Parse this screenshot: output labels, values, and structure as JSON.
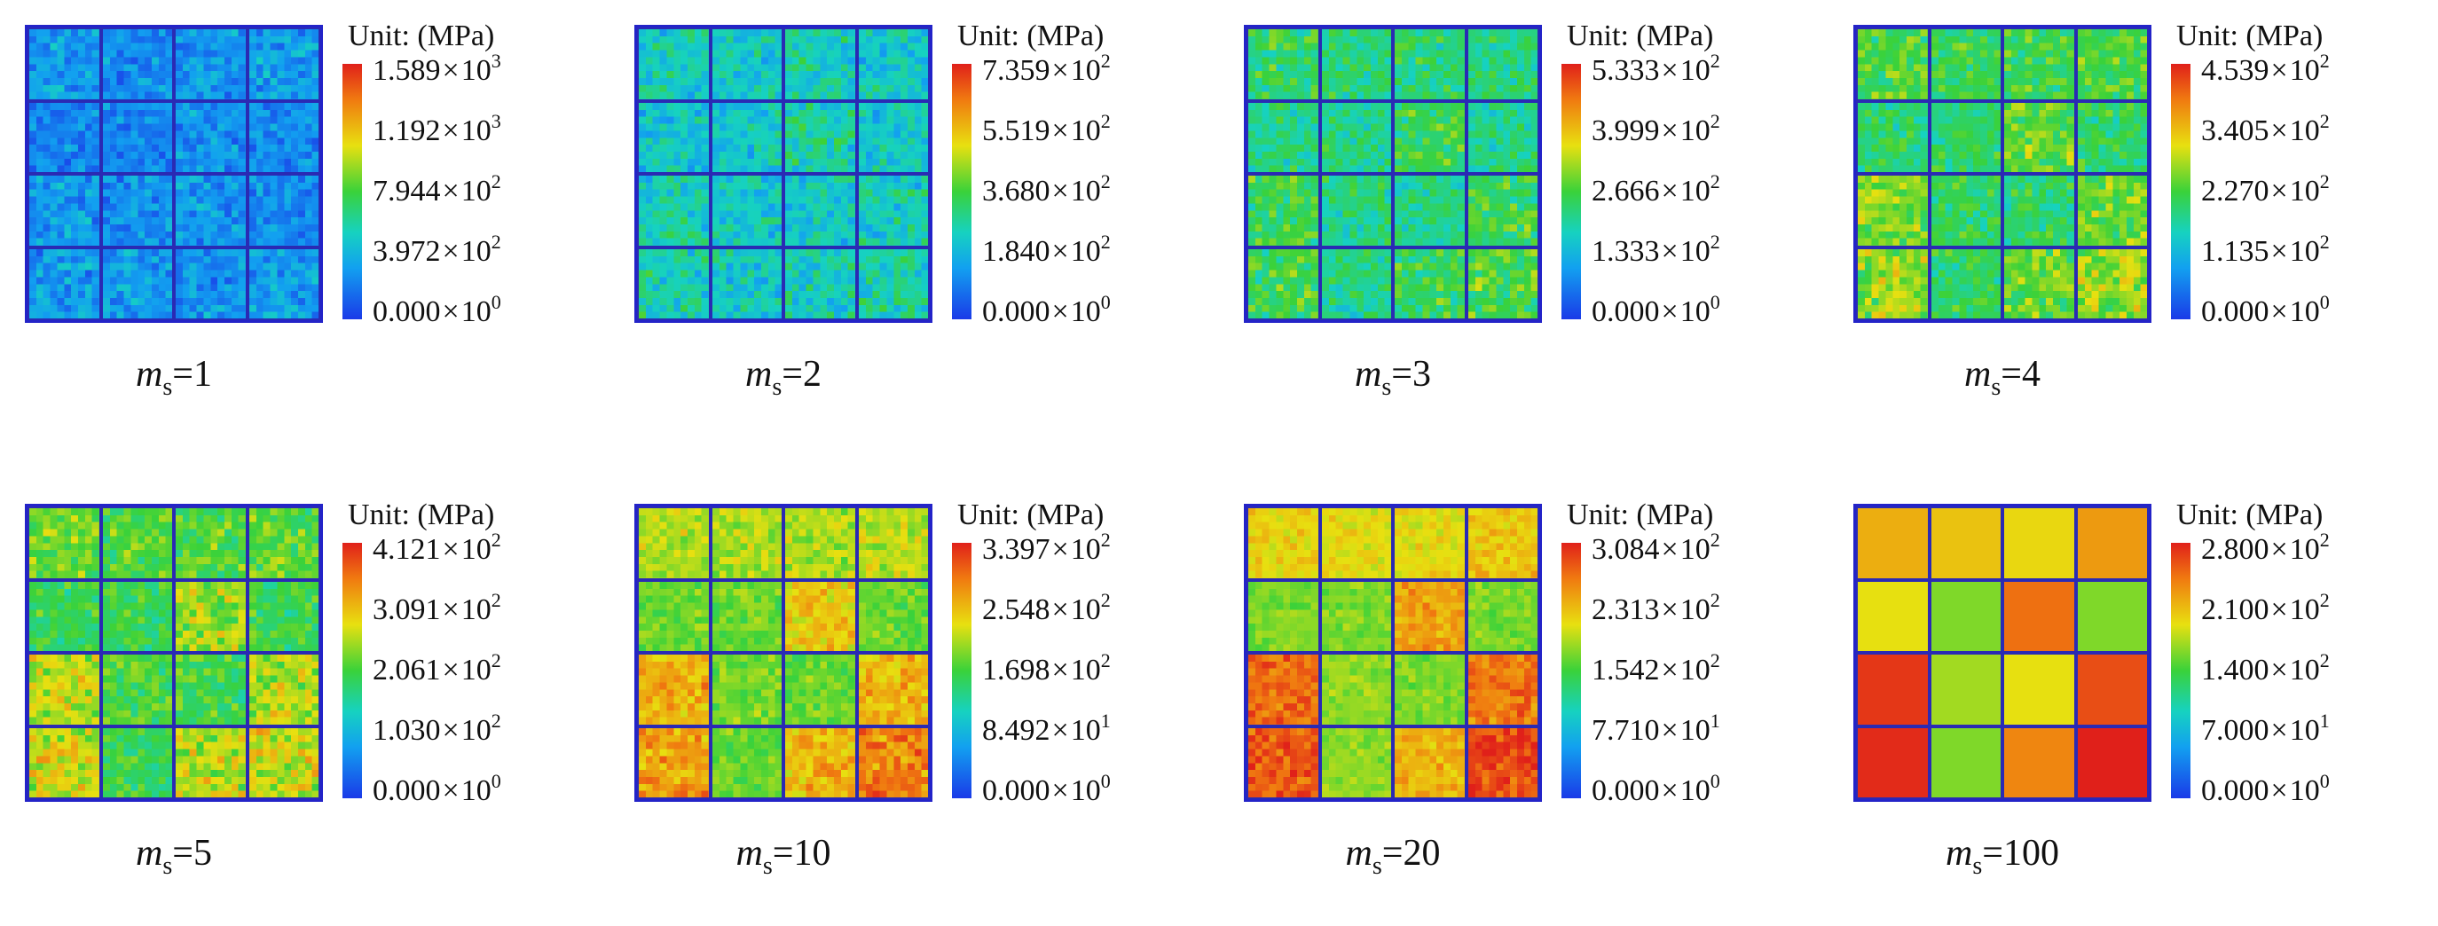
{
  "chart_data": [
    {
      "type": "heatmap",
      "caption": {
        "symbol": "m",
        "subscript": "s",
        "value": "=1"
      },
      "unit_label": "Unit: (MPa)",
      "colorbar_ticks": [
        {
          "mantissa": "1.589",
          "base": "10",
          "exponent": "3"
        },
        {
          "mantissa": "1.192",
          "base": "10",
          "exponent": "3"
        },
        {
          "mantissa": "7.944",
          "base": "10",
          "exponent": "2"
        },
        {
          "mantissa": "3.972",
          "base": "10",
          "exponent": "2"
        },
        {
          "mantissa": "0.000",
          "base": "10",
          "exponent": "0"
        }
      ],
      "vmin": 0,
      "vmax": 1589,
      "block_grid": [
        [
          300,
          260,
          280,
          320
        ],
        [
          240,
          250,
          290,
          260
        ],
        [
          310,
          270,
          300,
          250
        ],
        [
          330,
          300,
          290,
          310
        ]
      ],
      "noise": 0.55
    },
    {
      "type": "heatmap",
      "caption": {
        "symbol": "m",
        "subscript": "s",
        "value": "=2"
      },
      "unit_label": "Unit: (MPa)",
      "colorbar_ticks": [
        {
          "mantissa": "7.359",
          "base": "10",
          "exponent": "2"
        },
        {
          "mantissa": "5.519",
          "base": "10",
          "exponent": "2"
        },
        {
          "mantissa": "3.680",
          "base": "10",
          "exponent": "2"
        },
        {
          "mantissa": "1.840",
          "base": "10",
          "exponent": "2"
        },
        {
          "mantissa": "0.000",
          "base": "10",
          "exponent": "0"
        }
      ],
      "vmin": 0,
      "vmax": 735.9,
      "block_grid": [
        [
          240,
          230,
          250,
          235
        ],
        [
          220,
          225,
          270,
          230
        ],
        [
          260,
          235,
          230,
          255
        ],
        [
          265,
          240,
          255,
          275
        ]
      ],
      "noise": 0.35
    },
    {
      "type": "heatmap",
      "caption": {
        "symbol": "m",
        "subscript": "s",
        "value": "=3"
      },
      "unit_label": "Unit: (MPa)",
      "colorbar_ticks": [
        {
          "mantissa": "5.333",
          "base": "10",
          "exponent": "2"
        },
        {
          "mantissa": "3.999",
          "base": "10",
          "exponent": "2"
        },
        {
          "mantissa": "2.666",
          "base": "10",
          "exponent": "2"
        },
        {
          "mantissa": "1.333",
          "base": "10",
          "exponent": "2"
        },
        {
          "mantissa": "0.000",
          "base": "10",
          "exponent": "0"
        }
      ],
      "vmin": 0,
      "vmax": 533.3,
      "block_grid": [
        [
          240,
          225,
          230,
          220
        ],
        [
          215,
          215,
          250,
          215
        ],
        [
          255,
          220,
          215,
          250
        ],
        [
          255,
          215,
          250,
          265
        ]
      ],
      "noise": 0.25
    },
    {
      "type": "heatmap",
      "caption": {
        "symbol": "m",
        "subscript": "s",
        "value": "=4"
      },
      "unit_label": "Unit: (MPa)",
      "colorbar_ticks": [
        {
          "mantissa": "4.539",
          "base": "10",
          "exponent": "2"
        },
        {
          "mantissa": "3.405",
          "base": "10",
          "exponent": "2"
        },
        {
          "mantissa": "2.270",
          "base": "10",
          "exponent": "2"
        },
        {
          "mantissa": "1.135",
          "base": "10",
          "exponent": "2"
        },
        {
          "mantissa": "0.000",
          "base": "10",
          "exponent": "0"
        }
      ],
      "vmin": 0,
      "vmax": 453.9,
      "block_grid": [
        [
          225,
          215,
          220,
          225
        ],
        [
          195,
          200,
          245,
          205
        ],
        [
          255,
          205,
          200,
          250
        ],
        [
          265,
          205,
          245,
          270
        ]
      ],
      "noise": 0.22
    },
    {
      "type": "heatmap",
      "caption": {
        "symbol": "m",
        "subscript": "s",
        "value": "=5"
      },
      "unit_label": "Unit: (MPa)",
      "colorbar_ticks": [
        {
          "mantissa": "4.121",
          "base": "10",
          "exponent": "2"
        },
        {
          "mantissa": "3.091",
          "base": "10",
          "exponent": "2"
        },
        {
          "mantissa": "2.061",
          "base": "10",
          "exponent": "2"
        },
        {
          "mantissa": "1.030",
          "base": "10",
          "exponent": "2"
        },
        {
          "mantissa": "0.000",
          "base": "10",
          "exponent": "0"
        }
      ],
      "vmin": 0,
      "vmax": 412.1,
      "block_grid": [
        [
          225,
          215,
          215,
          220
        ],
        [
          195,
          195,
          250,
          195
        ],
        [
          265,
          210,
          200,
          255
        ],
        [
          270,
          195,
          260,
          270
        ]
      ],
      "noise": 0.2
    },
    {
      "type": "heatmap",
      "caption": {
        "symbol": "m",
        "subscript": "s",
        "value": "=10"
      },
      "unit_label": "Unit: (MPa)",
      "colorbar_ticks": [
        {
          "mantissa": "3.397",
          "base": "10",
          "exponent": "2"
        },
        {
          "mantissa": "2.548",
          "base": "10",
          "exponent": "2"
        },
        {
          "mantissa": "1.698",
          "base": "10",
          "exponent": "2"
        },
        {
          "mantissa": "8.492",
          "base": "10",
          "exponent": "1"
        },
        {
          "mantissa": "0.000",
          "base": "10",
          "exponent": "0"
        }
      ],
      "vmin": 0,
      "vmax": 339.7,
      "block_grid": [
        [
          215,
          210,
          210,
          215
        ],
        [
          185,
          185,
          245,
          185
        ],
        [
          260,
          190,
          185,
          255
        ],
        [
          270,
          185,
          255,
          285
        ]
      ],
      "noise": 0.13
    },
    {
      "type": "heatmap",
      "caption": {
        "symbol": "m",
        "subscript": "s",
        "value": "=20"
      },
      "unit_label": "Unit: (MPa)",
      "colorbar_ticks": [
        {
          "mantissa": "3.084",
          "base": "10",
          "exponent": "2"
        },
        {
          "mantissa": "2.313",
          "base": "10",
          "exponent": "2"
        },
        {
          "mantissa": "1.542",
          "base": "10",
          "exponent": "2"
        },
        {
          "mantissa": "7.710",
          "base": "10",
          "exponent": "1"
        },
        {
          "mantissa": "0.000",
          "base": "10",
          "exponent": "0"
        }
      ],
      "vmin": 0,
      "vmax": 308.4,
      "block_grid": [
        [
          215,
          210,
          210,
          225
        ],
        [
          175,
          175,
          245,
          175
        ],
        [
          270,
          180,
          175,
          265
        ],
        [
          280,
          180,
          235,
          290
        ]
      ],
      "noise": 0.09
    },
    {
      "type": "heatmap",
      "caption": {
        "symbol": "m",
        "subscript": "s",
        "value": "=100"
      },
      "unit_label": "Unit: (MPa)",
      "colorbar_ticks": [
        {
          "mantissa": "2.800",
          "base": "10",
          "exponent": "2"
        },
        {
          "mantissa": "2.100",
          "base": "10",
          "exponent": "2"
        },
        {
          "mantissa": "1.400",
          "base": "10",
          "exponent": "2"
        },
        {
          "mantissa": "7.000",
          "base": "10",
          "exponent": "1"
        },
        {
          "mantissa": "0.000",
          "base": "10",
          "exponent": "0"
        }
      ],
      "vmin": 0,
      "vmax": 280,
      "block_grid": [
        [
          215,
          205,
          195,
          225
        ],
        [
          190,
          160,
          245,
          160
        ],
        [
          270,
          170,
          190,
          260
        ],
        [
          275,
          160,
          235,
          280
        ]
      ],
      "noise": 0.0
    }
  ]
}
